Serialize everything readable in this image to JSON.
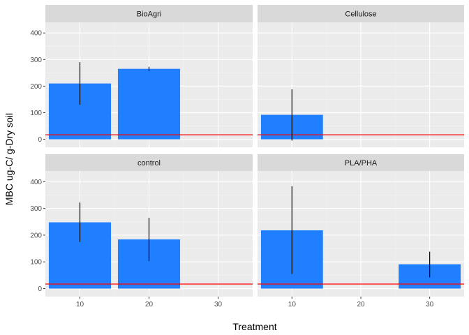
{
  "chart_data": {
    "type": "bar",
    "xlabel": "Treatment",
    "ylabel": "MBC ug-C/ g-Dry soil",
    "x_ticks": [
      10,
      20,
      30
    ],
    "y_ticks": [
      0,
      100,
      200,
      300,
      400
    ],
    "ylim": [
      -30,
      440
    ],
    "xlim": [
      5,
      35
    ],
    "bar_width": 9,
    "reference_line": {
      "y": 17,
      "color": "#ff0000"
    },
    "bar_color": "#1f7fff",
    "facets": [
      {
        "label": "BioAgri",
        "bars": [
          {
            "x": 10,
            "y": 210,
            "err_low": 130,
            "err_high": 290
          },
          {
            "x": 20,
            "y": 265,
            "err_low": 257,
            "err_high": 273
          }
        ]
      },
      {
        "label": "Cellulose",
        "bars": [
          {
            "x": 10,
            "y": 92,
            "err_low": -5,
            "err_high": 188
          }
        ]
      },
      {
        "label": "control",
        "bars": [
          {
            "x": 10,
            "y": 248,
            "err_low": 175,
            "err_high": 322
          },
          {
            "x": 20,
            "y": 184,
            "err_low": 103,
            "err_high": 265
          }
        ]
      },
      {
        "label": "PLA/PHA",
        "bars": [
          {
            "x": 10,
            "y": 218,
            "err_low": 55,
            "err_high": 383
          },
          {
            "x": 30,
            "y": 91,
            "err_low": 42,
            "err_high": 138
          }
        ]
      }
    ]
  }
}
